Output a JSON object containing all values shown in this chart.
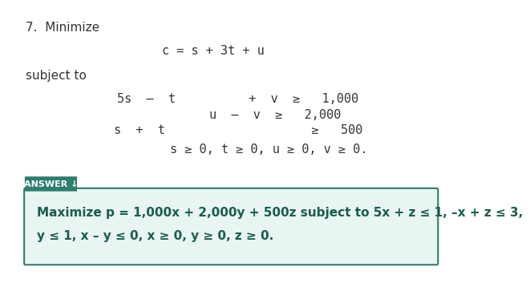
{
  "bg_color": "#ffffff",
  "number_text": "7.  Minimize",
  "objective_text": "c = s + 3t + u",
  "subject_to_text": "subject to",
  "constraint1": "5s  –  t          +  v  ≥   1,000",
  "constraint2": "u  –  v  ≥   2,000",
  "constraint3": "s  +  t                    ≥   500",
  "nonnegativity": "s ≥ 0, t ≥ 0, u ≥ 0, v ≥ 0.",
  "answer_tab_color": "#2e7d6e",
  "answer_box_color": "#e8f5f2",
  "answer_tab_text": "ANSWER ↓",
  "answer_line1": "Maximize p = 1,000x + 2,000y + 500z subject to 5x + z ≤ 1, –x + z ≤ 3,",
  "answer_line2": "y ≤ 1, x – y ≤ 0, x ≥ 0, y ≥ 0, z ≥ 0.",
  "text_color": "#333333",
  "answer_text_color": "#1a5c4e",
  "answer_border_color": "#2e7d6e",
  "font_size_main": 11,
  "font_size_answer": 11
}
